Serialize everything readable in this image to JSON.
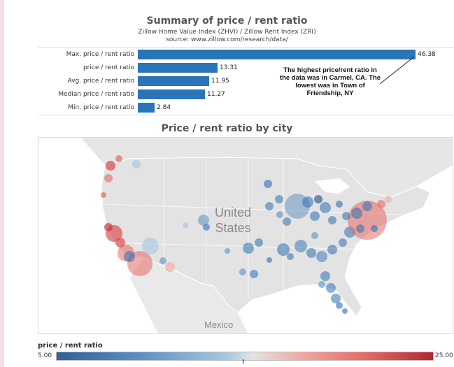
{
  "chart_data": [
    {
      "type": "bar",
      "orientation": "horizontal",
      "title": "Summary of price / rent ratio",
      "subtitle": "Zillow Home Value Index (ZHVI) / Zillow Rent Index (ZRI)",
      "source": "source: www.zillow.com/research/data/",
      "categories": [
        "Max. price / rent ratio",
        "price / rent ratio",
        "Avg. price / rent ratio",
        "Median price / rent ratio",
        "Min. price / rent ratio"
      ],
      "values": [
        46.38,
        13.31,
        11.95,
        11.27,
        2.84
      ],
      "value_labels": [
        "46.38",
        "13.31",
        "11.95",
        "11.27",
        "2.84"
      ],
      "xlim": [
        0,
        46.38
      ],
      "bar_color": "#2a74b8",
      "annotation": "The highest price/rent ratio in the data was in Carmel, CA. The lowest was in Town of Friendship, NY"
    },
    {
      "type": "map",
      "title": "Price / rent ratio by city",
      "map_labels": [
        "United States",
        "Mexico"
      ],
      "legend": {
        "title": "price / rent ratio",
        "min_label": "5.00",
        "max_label": "25.00",
        "range": [
          5,
          25
        ]
      }
    }
  ]
}
